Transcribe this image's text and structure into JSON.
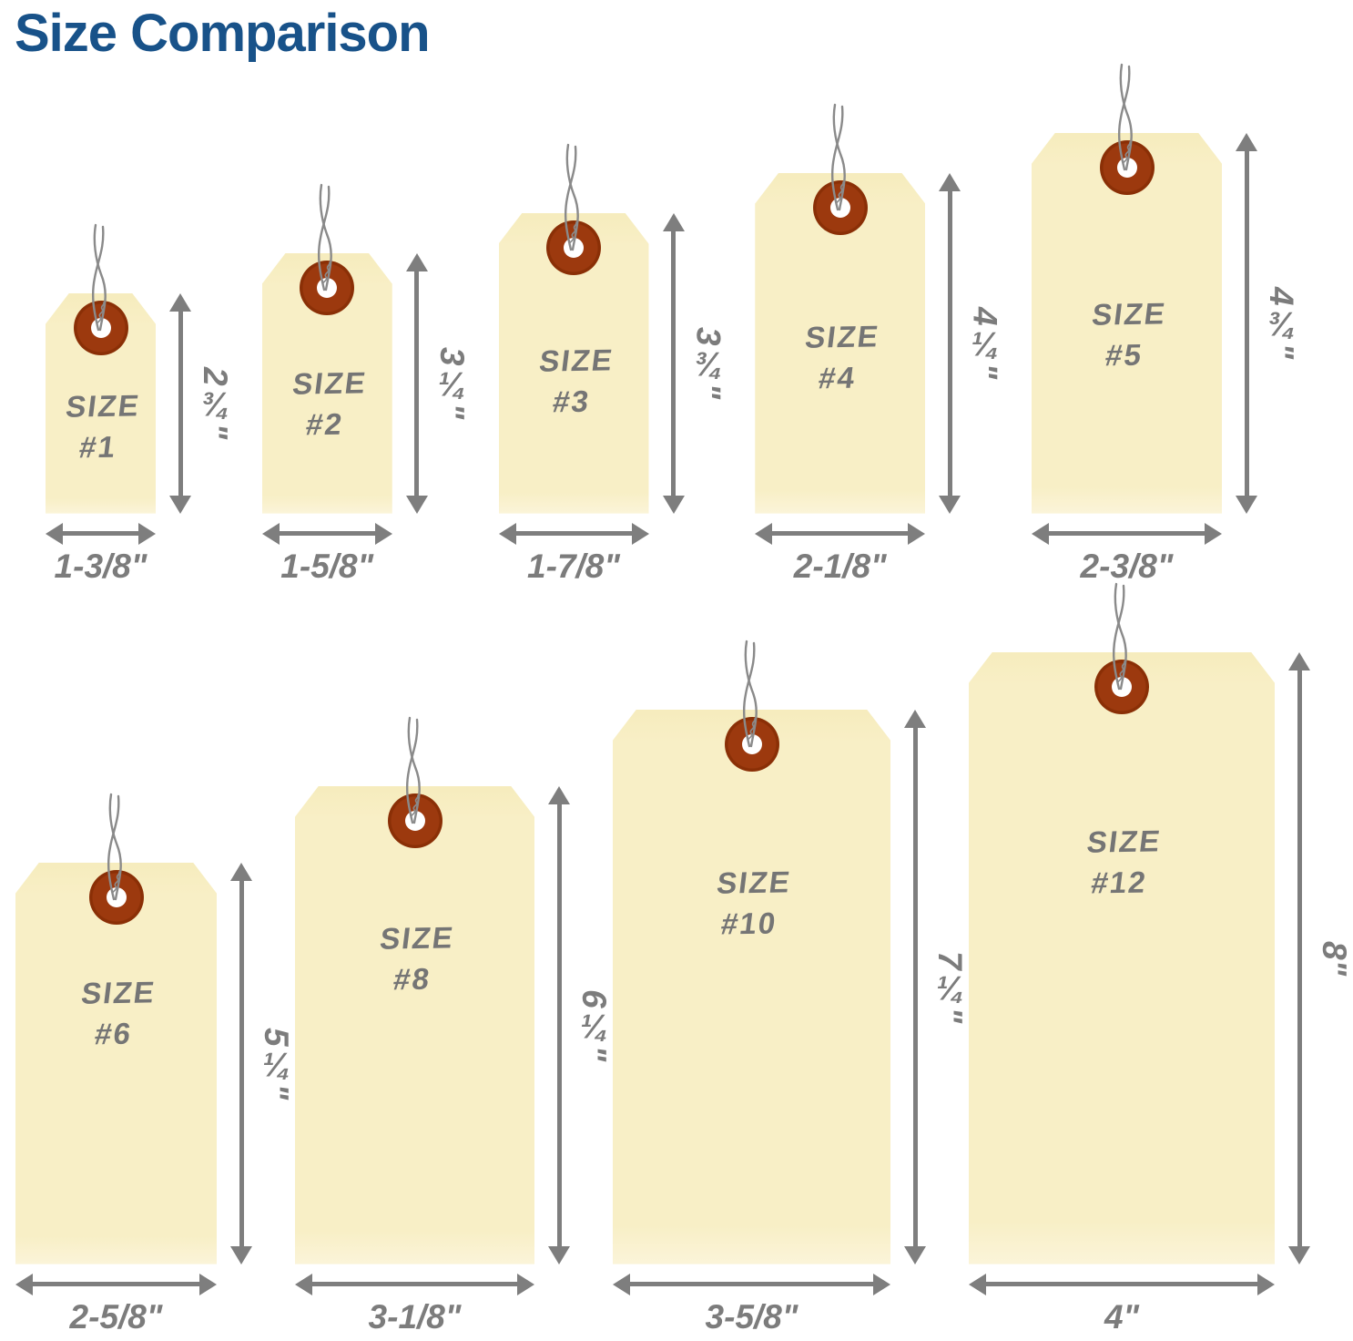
{
  "title": "Size Comparison",
  "colors": {
    "title_blue": "#185289",
    "tag_fill": "#F8EFC6",
    "grommet_rust": "#9C390E",
    "grommet_hole": "#FFFFFF",
    "wire_gray": "#8A8A8A",
    "arrow_gray": "#7E7E7E",
    "label_gray": "#7C7C7C",
    "handwriting_gray": "#757575"
  },
  "tags": [
    {
      "label": "SIZE",
      "number": "#1",
      "width_label": "1-3/8\"",
      "height_label": "2¾\"",
      "width_in": 1.375,
      "height_in": 2.75,
      "row": 1
    },
    {
      "label": "SIZE",
      "number": "#2",
      "width_label": "1-5/8\"",
      "height_label": "3¼\"",
      "width_in": 1.625,
      "height_in": 3.25,
      "row": 1
    },
    {
      "label": "SIZE",
      "number": "#3",
      "width_label": "1-7/8\"",
      "height_label": "3¾\"",
      "width_in": 1.875,
      "height_in": 3.75,
      "row": 1
    },
    {
      "label": "SIZE",
      "number": "#4",
      "width_label": "2-1/8\"",
      "height_label": "4¼\"",
      "width_in": 2.125,
      "height_in": 4.25,
      "row": 1
    },
    {
      "label": "SIZE",
      "number": "#5",
      "width_label": "2-3/8\"",
      "height_label": "4¾\"",
      "width_in": 2.375,
      "height_in": 4.75,
      "row": 1
    },
    {
      "label": "SIZE",
      "number": "#6",
      "width_label": "2-5/8\"",
      "height_label": "5¼\"",
      "width_in": 2.625,
      "height_in": 5.25,
      "row": 2
    },
    {
      "label": "SIZE",
      "number": "#8",
      "width_label": "3-1/8\"",
      "height_label": "6¼\"",
      "width_in": 3.125,
      "height_in": 6.25,
      "row": 2
    },
    {
      "label": "SIZE",
      "number": "#10",
      "width_label": "3-5/8\"",
      "height_label": "7¼\"",
      "width_in": 3.625,
      "height_in": 7.25,
      "row": 2
    },
    {
      "label": "SIZE",
      "number": "#12",
      "width_label": "4\"",
      "height_label": "8\"",
      "width_in": 4.0,
      "height_in": 8.0,
      "row": 2
    }
  ]
}
